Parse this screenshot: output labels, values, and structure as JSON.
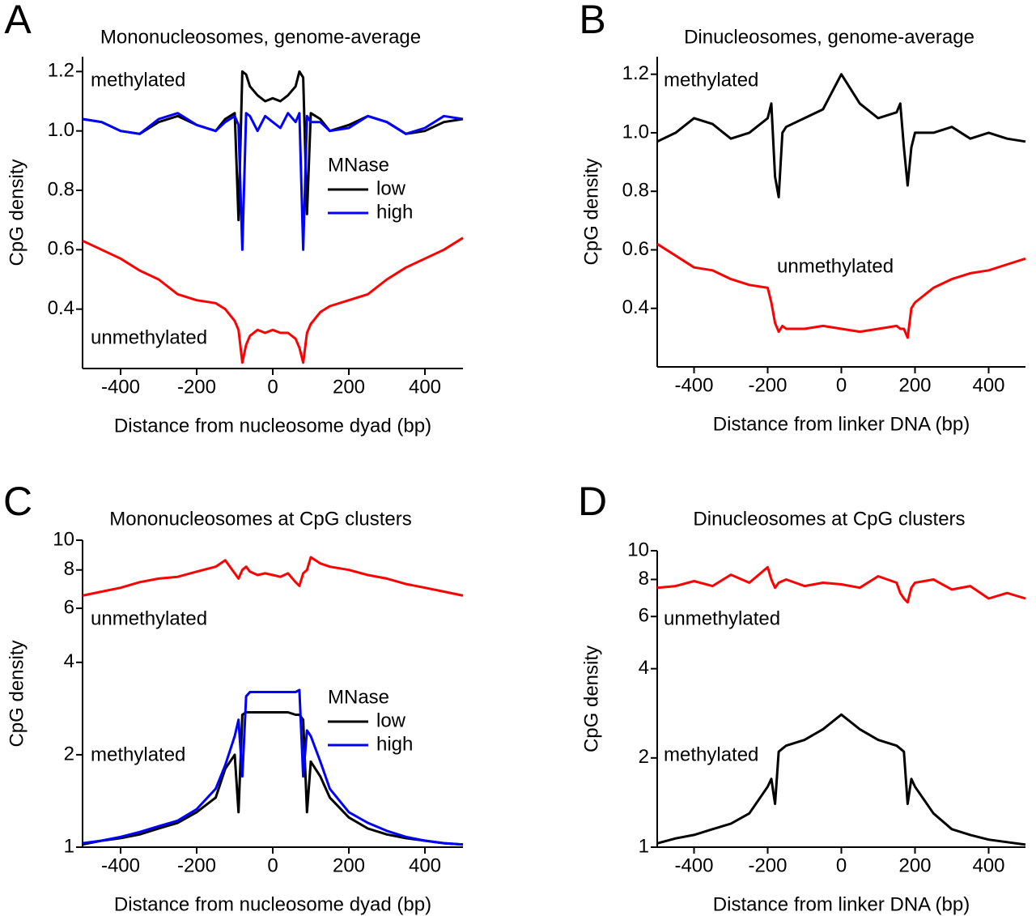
{
  "chart_data": [
    {
      "type": "line",
      "panel": "A",
      "title": "Mononucleosomes, genome-average",
      "x_label": "Distance from nucleosome dyad (bp)",
      "y_label": "CpG density",
      "annotations": [
        "methylated",
        "unmethylated"
      ],
      "legend_title": "MNase",
      "xlim": [
        -500,
        500
      ],
      "xticks": [
        -400,
        -200,
        0,
        200,
        400
      ],
      "ylim": [
        0.2,
        1.25
      ],
      "yticks": [
        0.4,
        0.6,
        0.8,
        {
          "value": 1,
          "label": "1.0"
        },
        1.2
      ],
      "log_y": false,
      "x": [
        -500,
        -450,
        -400,
        -350,
        -300,
        -250,
        -200,
        -150,
        -125,
        -100,
        -90,
        -80,
        -70,
        -60,
        -40,
        -20,
        0,
        20,
        40,
        60,
        70,
        80,
        90,
        100,
        125,
        150,
        200,
        250,
        300,
        350,
        400,
        450,
        500
      ],
      "series": [
        {
          "name": "low",
          "color": "#000000",
          "values": [
            1.04,
            1.03,
            1.0,
            0.99,
            1.03,
            1.05,
            1.02,
            1.0,
            1.04,
            1.06,
            0.7,
            1.2,
            1.19,
            1.15,
            1.12,
            1.1,
            1.11,
            1.1,
            1.12,
            1.15,
            1.2,
            1.18,
            0.72,
            1.06,
            1.04,
            1.0,
            1.02,
            1.05,
            1.03,
            0.99,
            1.0,
            1.03,
            1.04
          ]
        },
        {
          "name": "high",
          "color": "#0000ff",
          "values": [
            1.04,
            1.03,
            1.0,
            0.99,
            1.04,
            1.06,
            1.02,
            1.0,
            1.03,
            1.05,
            1.02,
            0.6,
            1.06,
            1.05,
            1.0,
            1.05,
            1.03,
            1.01,
            1.06,
            1.03,
            1.06,
            0.6,
            1.05,
            1.03,
            1.03,
            1.0,
            1.01,
            1.05,
            1.03,
            0.99,
            1.01,
            1.05,
            1.04
          ]
        },
        {
          "color": "#ff0000",
          "values": [
            0.63,
            0.6,
            0.57,
            0.53,
            0.5,
            0.45,
            0.43,
            0.42,
            0.4,
            0.36,
            0.33,
            0.22,
            0.28,
            0.31,
            0.33,
            0.32,
            0.33,
            0.32,
            0.32,
            0.3,
            0.27,
            0.22,
            0.32,
            0.35,
            0.39,
            0.41,
            0.43,
            0.45,
            0.5,
            0.54,
            0.57,
            0.6,
            0.64
          ]
        }
      ]
    },
    {
      "type": "line",
      "panel": "B",
      "title": "Dinucleosomes, genome-average",
      "x_label": "Distance from linker DNA (bp)",
      "y_label": "CpG density",
      "annotations": [
        "methylated",
        "unmethylated"
      ],
      "xlim": [
        -500,
        500
      ],
      "xticks": [
        -400,
        -200,
        0,
        200,
        400
      ],
      "ylim": [
        0.2,
        1.26
      ],
      "yticks": [
        0.4,
        0.6,
        0.8,
        {
          "value": 1,
          "label": "1.0"
        },
        1.2
      ],
      "log_y": false,
      "x": [
        -500,
        -450,
        -400,
        -350,
        -300,
        -250,
        -200,
        -190,
        -180,
        -170,
        -160,
        -150,
        -100,
        -50,
        0,
        50,
        100,
        150,
        160,
        170,
        180,
        190,
        200,
        250,
        300,
        350,
        400,
        450,
        500
      ],
      "series": [
        {
          "color": "#000000",
          "values": [
            0.97,
            1.0,
            1.05,
            1.03,
            0.98,
            1.0,
            1.05,
            1.1,
            0.85,
            0.78,
            1.0,
            1.02,
            1.05,
            1.08,
            1.2,
            1.1,
            1.05,
            1.07,
            1.1,
            0.95,
            0.82,
            0.95,
            1.0,
            1.0,
            1.02,
            0.98,
            1.0,
            0.98,
            0.97
          ]
        },
        {
          "color": "#ff0000",
          "values": [
            0.62,
            0.58,
            0.54,
            0.53,
            0.5,
            0.48,
            0.47,
            0.42,
            0.35,
            0.32,
            0.34,
            0.33,
            0.33,
            0.34,
            0.33,
            0.32,
            0.33,
            0.34,
            0.33,
            0.33,
            0.3,
            0.4,
            0.42,
            0.47,
            0.5,
            0.52,
            0.53,
            0.55,
            0.57
          ]
        }
      ]
    },
    {
      "type": "line",
      "panel": "C",
      "title": "Mononucleosomes at CpG clusters",
      "x_label": "Distance from nucleosome dyad (bp)",
      "y_label": "CpG density",
      "annotations": [
        "unmethylated",
        "methylated"
      ],
      "legend_title": "MNase",
      "xlim": [
        -500,
        500
      ],
      "xticks": [
        -400,
        -200,
        0,
        200,
        400
      ],
      "ylim": [
        1,
        10
      ],
      "yticks": [
        1,
        2,
        4,
        6,
        8,
        10
      ],
      "log_y": true,
      "x": [
        -500,
        -450,
        -400,
        -350,
        -300,
        -250,
        -200,
        -150,
        -125,
        -100,
        -90,
        -80,
        -70,
        -60,
        -40,
        -20,
        0,
        20,
        40,
        60,
        70,
        80,
        90,
        100,
        125,
        150,
        200,
        250,
        300,
        350,
        400,
        450,
        500
      ],
      "series": [
        {
          "color": "#ff0000",
          "values": [
            6.6,
            6.8,
            7.0,
            7.3,
            7.5,
            7.6,
            7.9,
            8.2,
            8.6,
            7.8,
            7.5,
            8.0,
            8.2,
            7.9,
            7.7,
            7.8,
            7.7,
            7.6,
            7.8,
            7.3,
            7.1,
            7.8,
            8.0,
            8.8,
            8.4,
            8.2,
            8.0,
            7.7,
            7.5,
            7.2,
            7.0,
            6.8,
            6.6
          ]
        },
        {
          "name": "low",
          "color": "#000000",
          "values": [
            1.02,
            1.05,
            1.07,
            1.1,
            1.15,
            1.2,
            1.3,
            1.45,
            1.8,
            2.0,
            1.3,
            2.7,
            2.75,
            2.75,
            2.75,
            2.75,
            2.75,
            2.75,
            2.75,
            2.7,
            2.7,
            2.6,
            1.3,
            1.9,
            1.7,
            1.45,
            1.25,
            1.15,
            1.1,
            1.07,
            1.05,
            1.03,
            1.02
          ]
        },
        {
          "name": "high",
          "color": "#0000ff",
          "values": [
            1.03,
            1.05,
            1.08,
            1.12,
            1.17,
            1.22,
            1.33,
            1.55,
            1.85,
            2.3,
            2.6,
            1.7,
            3.1,
            3.2,
            3.2,
            3.2,
            3.2,
            3.2,
            3.2,
            3.2,
            3.25,
            1.7,
            2.4,
            2.3,
            1.9,
            1.55,
            1.3,
            1.2,
            1.13,
            1.08,
            1.05,
            1.03,
            1.02
          ]
        }
      ]
    },
    {
      "type": "line",
      "panel": "D",
      "title": "Dinucleosomes at CpG clusters",
      "x_label": "Distance from linker DNA (bp)",
      "y_label": "CpG density",
      "annotations": [
        "unmethylated",
        "methylated"
      ],
      "xlim": [
        -500,
        500
      ],
      "xticks": [
        -400,
        -200,
        0,
        200,
        400
      ],
      "ylim": [
        1,
        10
      ],
      "yticks": [
        1,
        2,
        4,
        6,
        8,
        10
      ],
      "log_y": true,
      "x": [
        -500,
        -450,
        -400,
        -350,
        -300,
        -250,
        -200,
        -190,
        -180,
        -170,
        -160,
        -150,
        -100,
        -50,
        0,
        50,
        100,
        150,
        160,
        170,
        180,
        190,
        200,
        250,
        300,
        350,
        400,
        450,
        500
      ],
      "series": [
        {
          "color": "#ff0000",
          "values": [
            7.5,
            7.6,
            7.9,
            7.6,
            8.3,
            7.8,
            8.8,
            8.0,
            7.5,
            7.8,
            7.9,
            8.0,
            7.6,
            7.8,
            7.7,
            7.5,
            8.2,
            7.8,
            7.2,
            6.9,
            6.7,
            7.5,
            7.8,
            8.0,
            7.4,
            7.6,
            6.9,
            7.2,
            6.9
          ]
        },
        {
          "color": "#000000",
          "values": [
            1.03,
            1.07,
            1.1,
            1.15,
            1.2,
            1.3,
            1.6,
            1.7,
            1.4,
            2.1,
            2.15,
            2.2,
            2.3,
            2.5,
            2.8,
            2.5,
            2.3,
            2.2,
            2.15,
            2.1,
            1.4,
            1.7,
            1.6,
            1.3,
            1.15,
            1.1,
            1.06,
            1.04,
            1.02
          ]
        }
      ]
    }
  ]
}
